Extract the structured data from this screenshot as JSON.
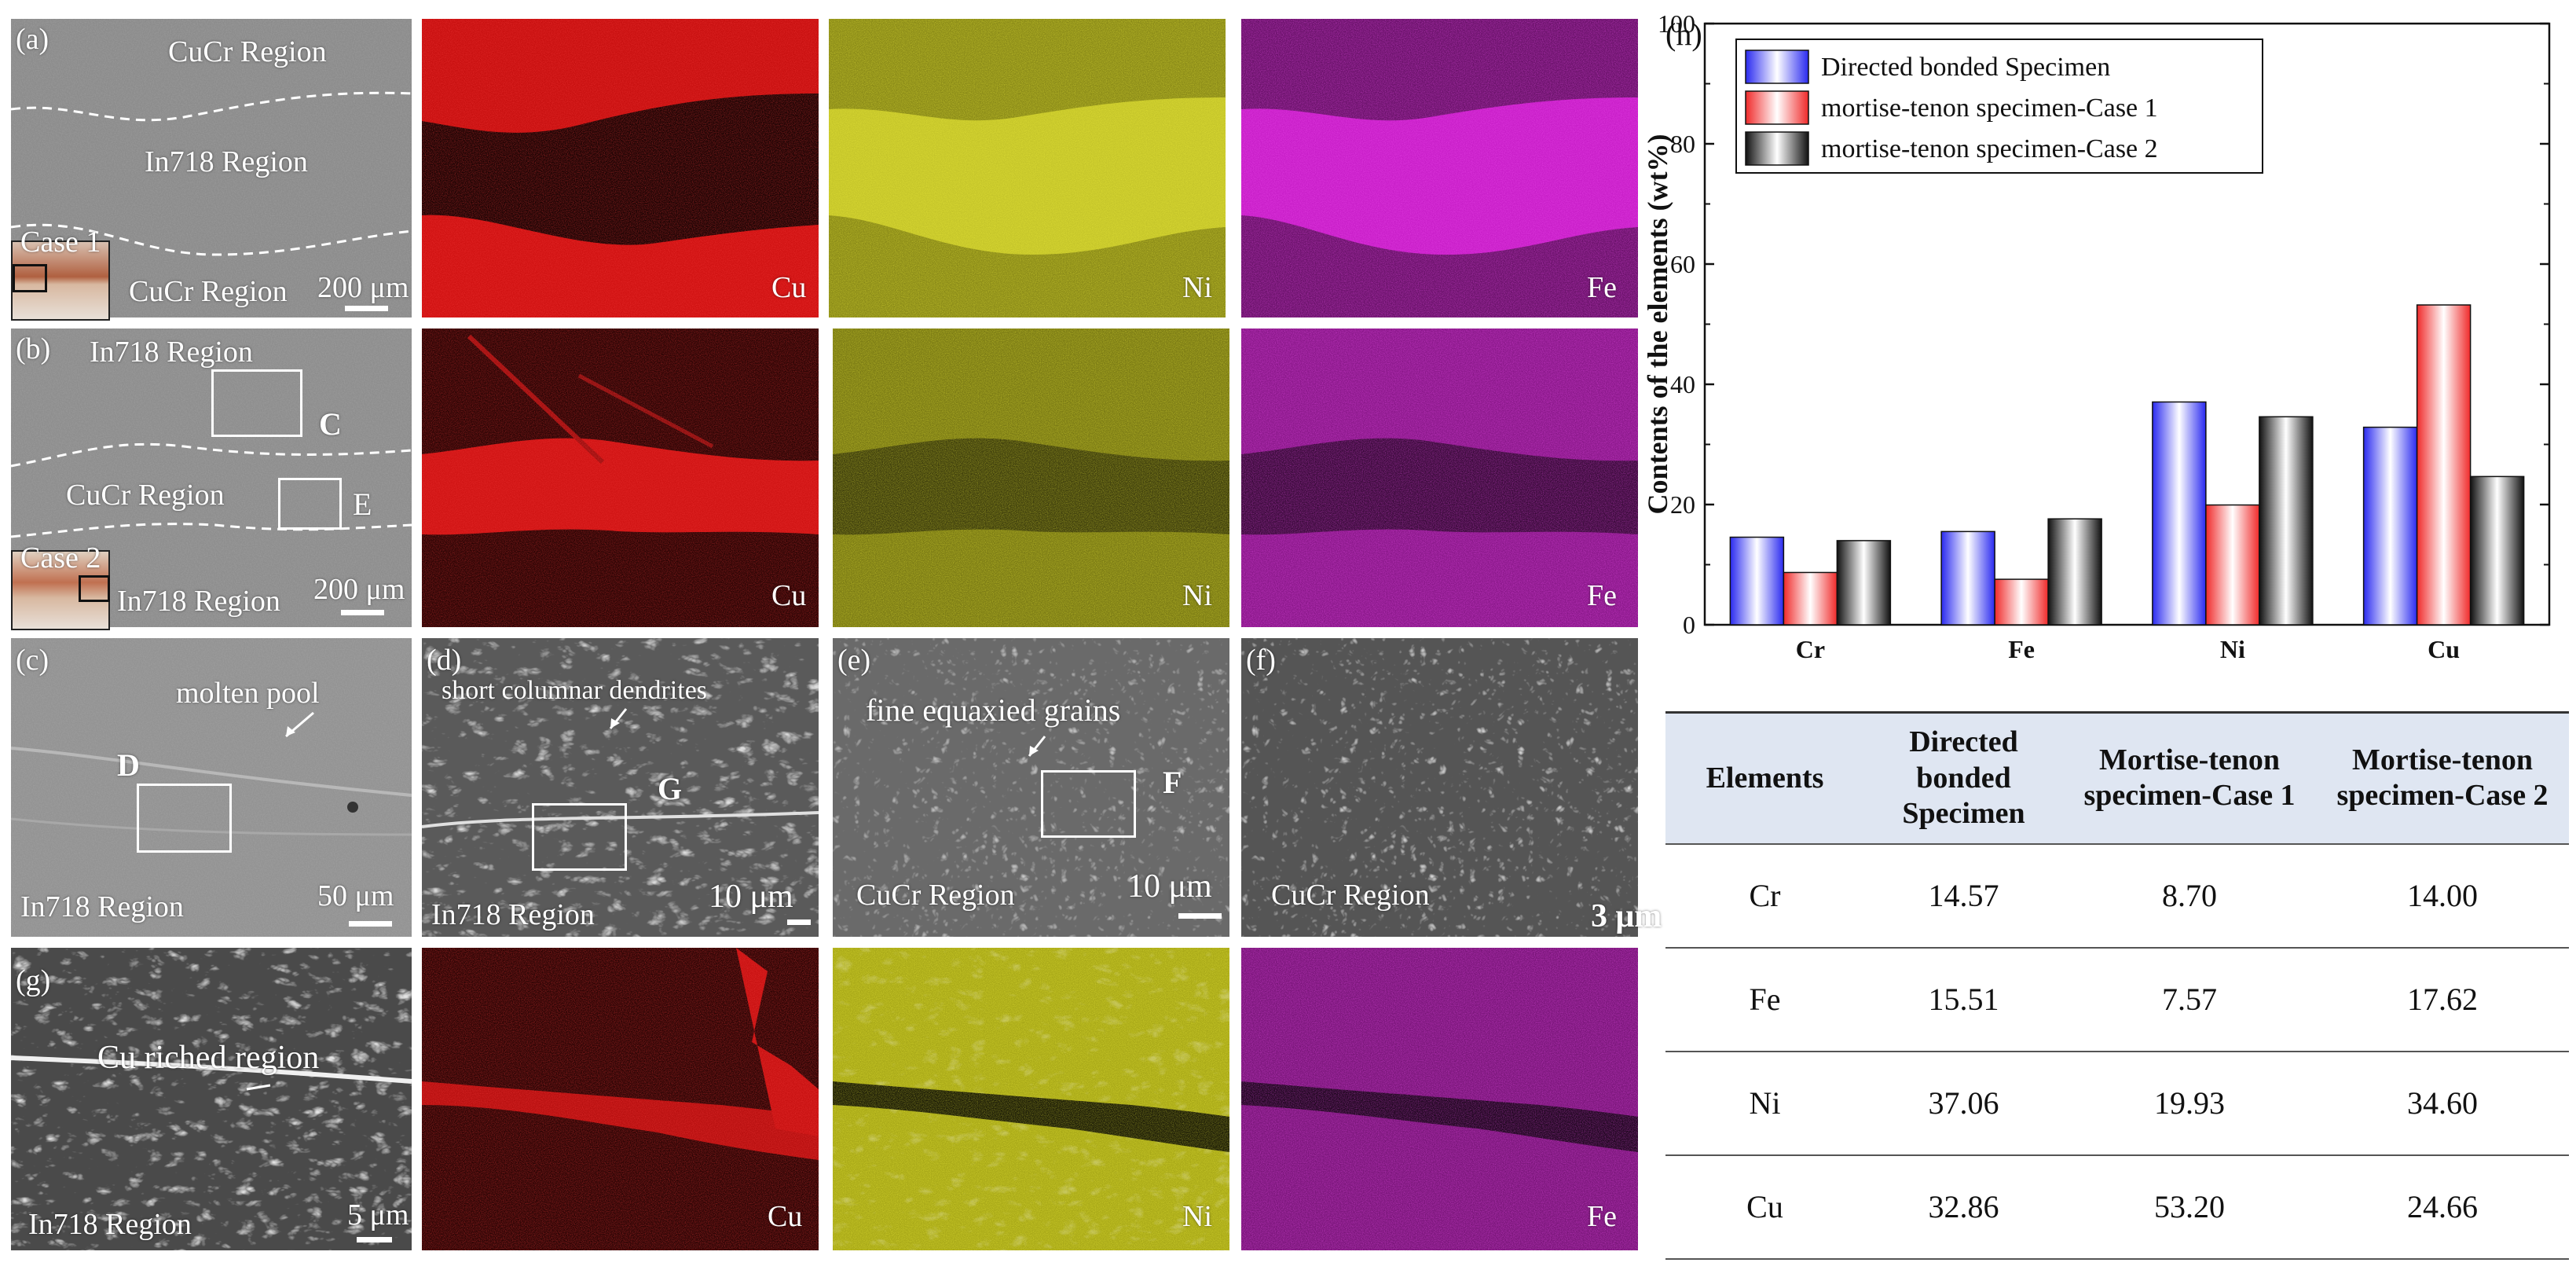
{
  "panels": {
    "a": {
      "label": "(a)",
      "region_top": "CuCr Region",
      "region_mid": "In718  Region",
      "region_bottom": "CuCr Region",
      "case": "Case 1",
      "scale": "200 μm"
    },
    "a_cu": {
      "element": "Cu",
      "color": "#e01616"
    },
    "a_ni": {
      "element": "Ni",
      "color": "#c8c81a"
    },
    "a_fe": {
      "element": "Fe",
      "color": "#d21ed2"
    },
    "b": {
      "label": "(b)",
      "region_top": "In718  Region",
      "region_mid": "CuCr Region",
      "region_bottom": "In718  Region",
      "case": "Case 2",
      "scale": "200 μm",
      "marker_c": "C",
      "marker_e": "E"
    },
    "b_cu": {
      "element": "Cu"
    },
    "b_ni": {
      "element": "Ni"
    },
    "b_fe": {
      "element": "Fe"
    },
    "c": {
      "label": "(c)",
      "annotation": "molten pool",
      "region": "In718  Region",
      "scale": "50 μm",
      "marker": "D"
    },
    "d": {
      "label": "(d)",
      "annotation": "short columnar dendrites",
      "region": "In718  Region",
      "scale": "10 μm",
      "marker": "G"
    },
    "e": {
      "label": "(e)",
      "annotation": "fine equaxied grains",
      "region": "CuCr Region",
      "scale": "10 μm",
      "marker": "F"
    },
    "f": {
      "label": "(f)",
      "region": "CuCr Region",
      "scale": "3 μm"
    },
    "g": {
      "label": "(g)",
      "annotation": "Cu riched region",
      "region": "In718  Region",
      "scale": "5 μm"
    },
    "g_cu": {
      "element": "Cu"
    },
    "g_ni": {
      "element": "Ni"
    },
    "g_fe": {
      "element": "Fe"
    },
    "h": {
      "label": "(h)"
    }
  },
  "chart_data": {
    "type": "bar",
    "categories": [
      "Cr",
      "Fe",
      "Ni",
      "Cu"
    ],
    "series": [
      {
        "name": "Directed bonded Specimen",
        "values": [
          14.57,
          15.51,
          37.06,
          32.86
        ],
        "color": "#3a3aee"
      },
      {
        "name": "mortise-tenon specimen-Case 1",
        "values": [
          8.7,
          7.57,
          19.93,
          53.2
        ],
        "color": "#ee3a3a"
      },
      {
        "name": "mortise-tenon specimen-Case 2",
        "values": [
          14.0,
          17.62,
          34.6,
          24.66
        ],
        "color": "#333333"
      }
    ],
    "ylabel": "Contents of the elements (wt%)",
    "ylim": [
      0,
      100
    ],
    "yticks": [
      0,
      20,
      40,
      60,
      80,
      100
    ],
    "legend": "top-left",
    "grid": false
  },
  "table": {
    "headers": [
      "Elements",
      "Directed bonded Specimen",
      "Mortise-tenon specimen-Case 1",
      "Mortise-tenon specimen-Case 2"
    ],
    "rows": [
      [
        "Cr",
        "14.57",
        "8.70",
        "14.00"
      ],
      [
        "Fe",
        "15.51",
        "7.57",
        "17.62"
      ],
      [
        "Ni",
        "37.06",
        "19.93",
        "34.60"
      ],
      [
        "Cu",
        "32.86",
        "53.20",
        "24.66"
      ]
    ]
  }
}
